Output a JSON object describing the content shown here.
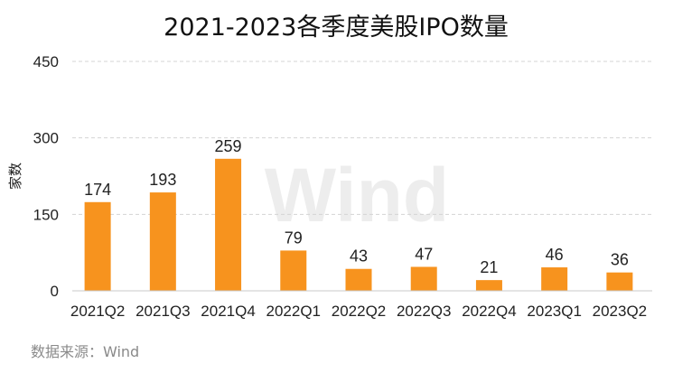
{
  "chart_data": {
    "type": "bar",
    "title": "2021-2023各季度美股IPO数量",
    "ylabel": "家数",
    "xlabel": "",
    "categories": [
      "2021Q2",
      "2021Q3",
      "2021Q4",
      "2022Q1",
      "2022Q2",
      "2022Q3",
      "2022Q4",
      "2023Q1",
      "2023Q2"
    ],
    "values": [
      174,
      193,
      259,
      79,
      43,
      47,
      21,
      46,
      36
    ],
    "value_labels": [
      "174",
      "193",
      "259",
      "79",
      "43",
      "47",
      "21",
      "46",
      "36"
    ],
    "yticks": [
      0,
      150,
      300,
      450
    ],
    "ytick_labels": [
      "0",
      "150",
      "300",
      "450"
    ],
    "ylim": [
      0,
      450
    ],
    "grid": true,
    "bar_color": "#F7931E",
    "legend": "none"
  },
  "source": "数据来源：Wind",
  "watermark": "Wind"
}
